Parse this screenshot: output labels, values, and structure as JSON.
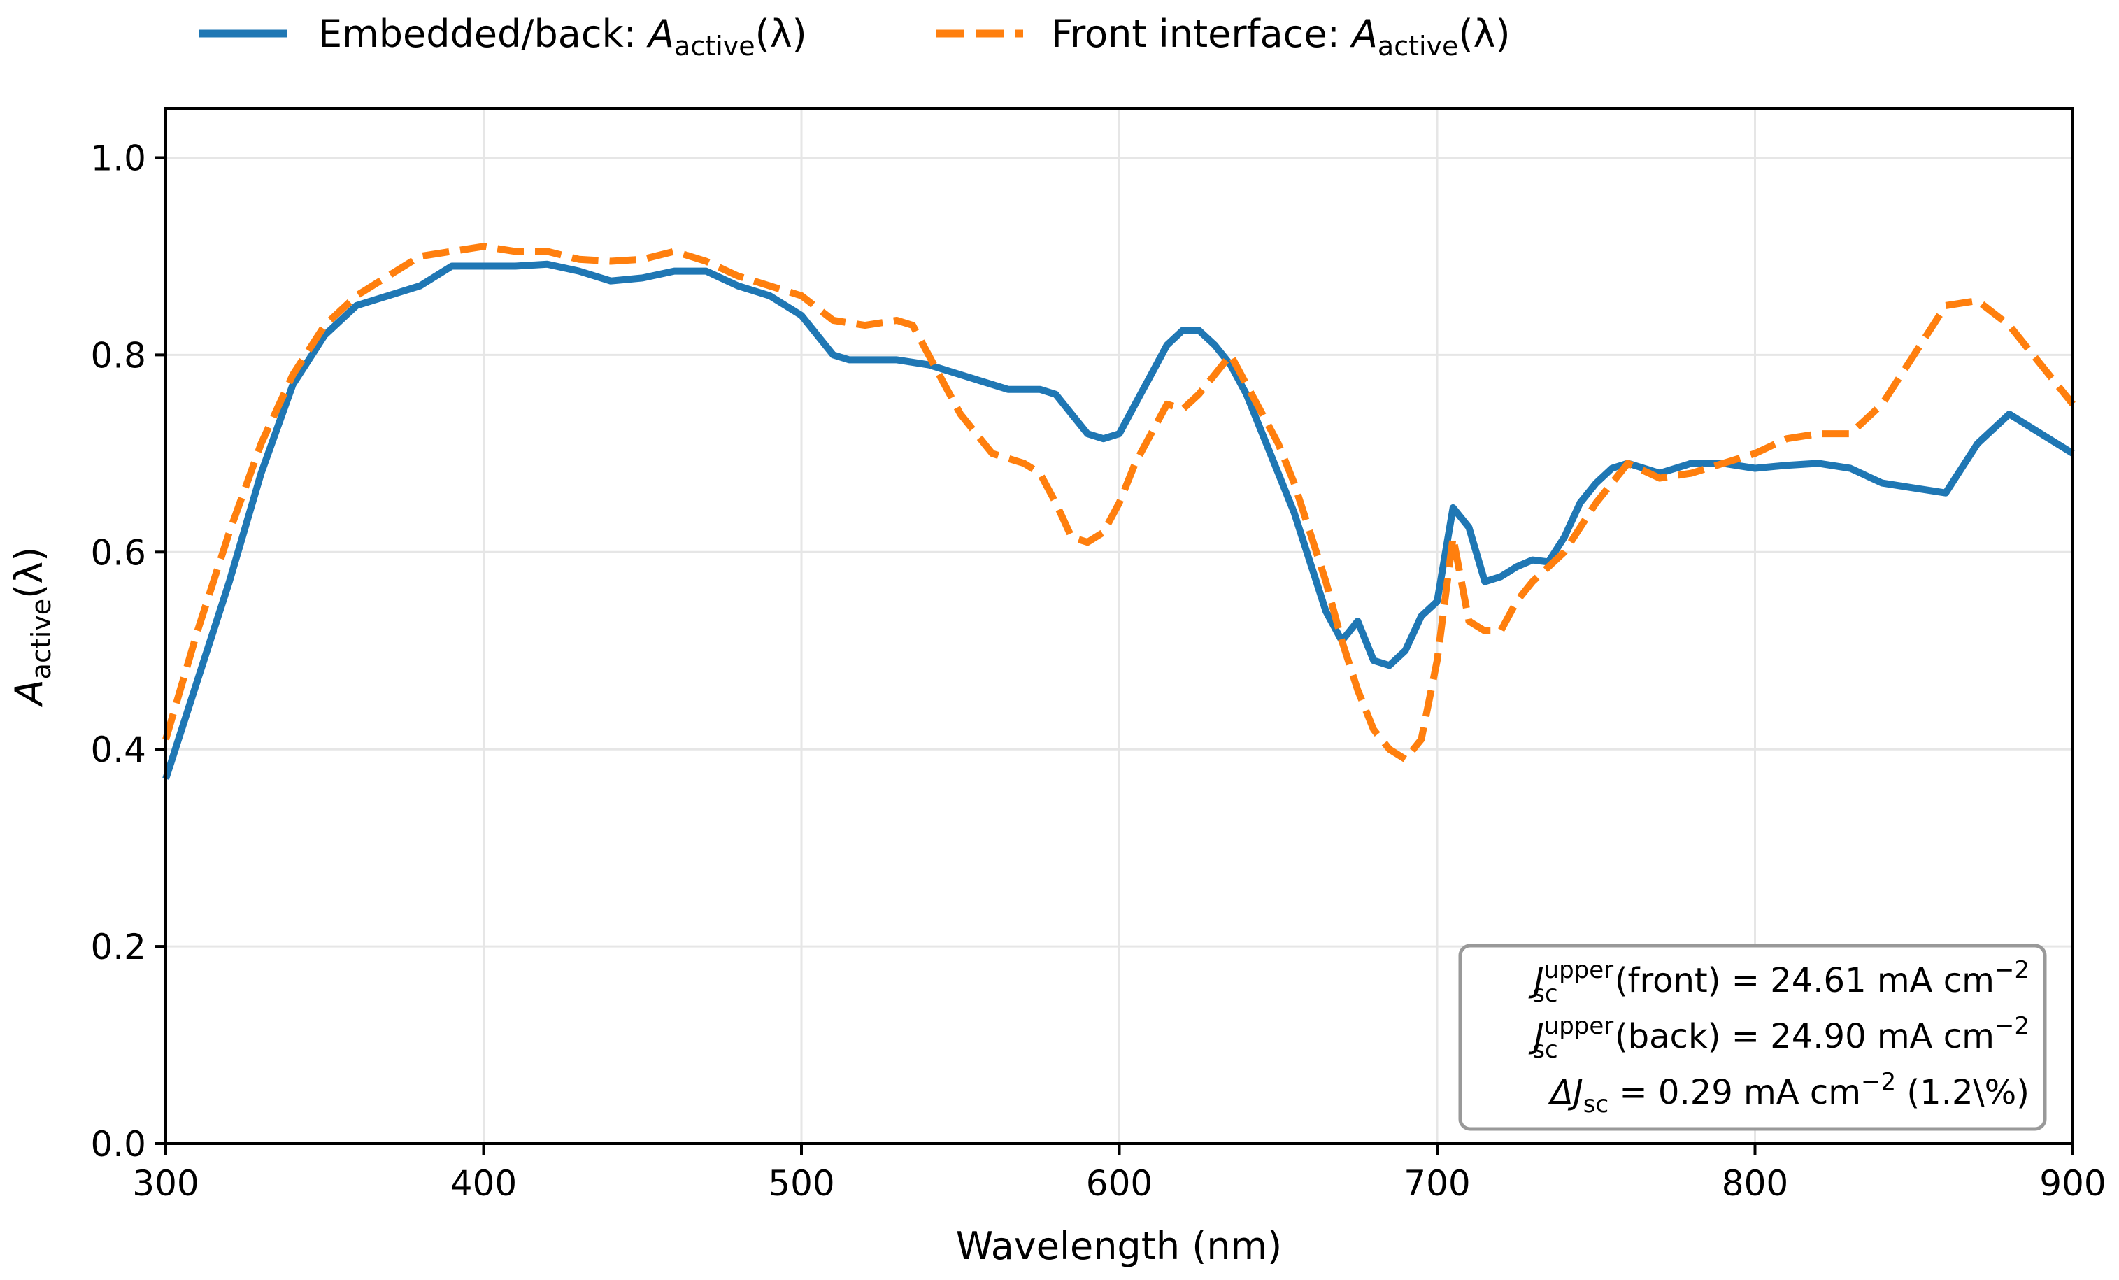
{
  "chart_data": {
    "type": "line",
    "xlabel": "Wavelength (nm)",
    "ylabel": {
      "base": "A",
      "sub": "active",
      "tail": "(λ)"
    },
    "xlim": [
      300,
      900
    ],
    "ylim": [
      0,
      1.05
    ],
    "xticks": [
      300,
      400,
      500,
      600,
      700,
      800,
      900
    ],
    "yticks": [
      0.0,
      0.2,
      0.4,
      0.6,
      0.8,
      1.0
    ],
    "xtick_labels": [
      "300",
      "400",
      "500",
      "600",
      "700",
      "800",
      "900"
    ],
    "ytick_labels": [
      "0.0",
      "0.2",
      "0.4",
      "0.6",
      "0.8",
      "1.0"
    ],
    "grid": true,
    "legend_position": "top-center",
    "series": [
      {
        "name": "Embedded/back: A_active(λ)",
        "legend": {
          "prefix": "Embedded/back: ",
          "base": "A",
          "sub": "active",
          "tail": "(λ)"
        },
        "color": "#1f77b4",
        "style": "solid",
        "x": [
          300,
          310,
          320,
          330,
          340,
          350,
          360,
          370,
          380,
          390,
          400,
          410,
          420,
          430,
          440,
          450,
          460,
          470,
          480,
          490,
          500,
          505,
          510,
          515,
          520,
          530,
          540,
          550,
          560,
          565,
          570,
          575,
          580,
          585,
          590,
          595,
          600,
          605,
          610,
          615,
          620,
          625,
          630,
          635,
          640,
          645,
          650,
          655,
          660,
          665,
          670,
          675,
          680,
          685,
          690,
          695,
          700,
          705,
          710,
          715,
          720,
          725,
          730,
          735,
          740,
          745,
          750,
          755,
          760,
          770,
          780,
          790,
          800,
          810,
          820,
          830,
          840,
          850,
          860,
          870,
          880,
          890,
          900
        ],
        "y": [
          0.37,
          0.47,
          0.57,
          0.68,
          0.77,
          0.82,
          0.85,
          0.86,
          0.87,
          0.89,
          0.89,
          0.89,
          0.892,
          0.885,
          0.875,
          0.878,
          0.885,
          0.885,
          0.87,
          0.86,
          0.84,
          0.82,
          0.8,
          0.795,
          0.795,
          0.795,
          0.79,
          0.78,
          0.77,
          0.765,
          0.765,
          0.765,
          0.76,
          0.74,
          0.72,
          0.715,
          0.72,
          0.75,
          0.78,
          0.81,
          0.825,
          0.825,
          0.81,
          0.79,
          0.76,
          0.72,
          0.68,
          0.64,
          0.59,
          0.54,
          0.51,
          0.53,
          0.49,
          0.485,
          0.5,
          0.535,
          0.55,
          0.645,
          0.625,
          0.57,
          0.575,
          0.585,
          0.592,
          0.59,
          0.615,
          0.65,
          0.67,
          0.685,
          0.69,
          0.68,
          0.69,
          0.69,
          0.685,
          0.688,
          0.69,
          0.685,
          0.67,
          0.665,
          0.66,
          0.71,
          0.74,
          0.72,
          0.7
        ]
      },
      {
        "name": "Front interface: A_active(λ)",
        "legend": {
          "prefix": "Front interface: ",
          "base": "A",
          "sub": "active",
          "tail": "(λ)"
        },
        "color": "#ff7f0e",
        "style": "dashed",
        "x": [
          300,
          310,
          320,
          330,
          340,
          350,
          360,
          370,
          380,
          390,
          400,
          410,
          420,
          430,
          440,
          450,
          460,
          470,
          480,
          490,
          500,
          510,
          520,
          530,
          535,
          540,
          545,
          550,
          555,
          560,
          565,
          570,
          575,
          580,
          585,
          590,
          595,
          600,
          605,
          610,
          615,
          620,
          625,
          630,
          635,
          640,
          645,
          650,
          655,
          660,
          665,
          670,
          675,
          680,
          685,
          690,
          695,
          700,
          705,
          710,
          715,
          720,
          725,
          730,
          740,
          750,
          760,
          770,
          780,
          790,
          800,
          810,
          820,
          830,
          840,
          850,
          860,
          870,
          880,
          890,
          900
        ],
        "y": [
          0.41,
          0.52,
          0.62,
          0.71,
          0.78,
          0.83,
          0.86,
          0.88,
          0.9,
          0.905,
          0.91,
          0.905,
          0.905,
          0.897,
          0.895,
          0.897,
          0.905,
          0.895,
          0.88,
          0.87,
          0.86,
          0.835,
          0.83,
          0.835,
          0.83,
          0.8,
          0.77,
          0.74,
          0.72,
          0.7,
          0.695,
          0.69,
          0.68,
          0.65,
          0.615,
          0.61,
          0.62,
          0.65,
          0.69,
          0.72,
          0.75,
          0.745,
          0.76,
          0.78,
          0.8,
          0.77,
          0.74,
          0.71,
          0.67,
          0.62,
          0.57,
          0.51,
          0.46,
          0.42,
          0.4,
          0.39,
          0.41,
          0.49,
          0.615,
          0.53,
          0.52,
          0.52,
          0.55,
          0.57,
          0.6,
          0.65,
          0.69,
          0.675,
          0.68,
          0.69,
          0.7,
          0.715,
          0.72,
          0.72,
          0.75,
          0.8,
          0.85,
          0.855,
          0.83,
          0.79,
          0.75
        ]
      }
    ],
    "annotation": {
      "position": "bottom-right",
      "line1": {
        "base": "J",
        "sup": "upper",
        "sub": "sc",
        "text": " (front) = 24.61 mA cm",
        "exp": "−2"
      },
      "line2": {
        "base": "J",
        "sup": "upper",
        "sub": "sc",
        "text": " (back) = 24.90 mA cm",
        "exp": "−2"
      },
      "line3": {
        "pre": "ΔJ",
        "sub": "sc",
        "text": " = 0.29 mA cm",
        "exp": "−2",
        "tail": " (1.2\\%)"
      }
    }
  }
}
